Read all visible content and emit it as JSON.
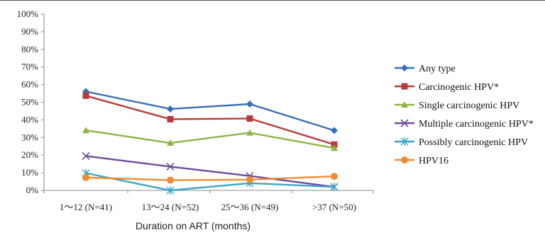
{
  "chart_data": {
    "type": "line",
    "title": "",
    "xlabel": "Duration on ART (months)",
    "ylabel": "",
    "ylim": [
      0,
      100
    ],
    "y_ticks": [
      "0%",
      "10%",
      "20%",
      "30%",
      "40%",
      "50%",
      "60%",
      "70%",
      "80%",
      "90%",
      "100%"
    ],
    "categories": [
      "1～12 (N=41)",
      "13～24 (N=52)",
      "25～36 (N=49)",
      ">37 (N=50)"
    ],
    "grid": false,
    "legend_position": "right",
    "series": [
      {
        "name": "Any type",
        "values": [
          56.1,
          46.2,
          49.0,
          34.0
        ],
        "color": "#3a6fb5",
        "marker": "diamond"
      },
      {
        "name": "Carcinogenic HPV*",
        "values": [
          53.7,
          40.4,
          40.8,
          26.0
        ],
        "color": "#b83a37",
        "marker": "square"
      },
      {
        "name": "Single carcinogenic HPV",
        "values": [
          34.1,
          26.9,
          32.7,
          24.0
        ],
        "color": "#8db544",
        "marker": "triangle"
      },
      {
        "name": "Multiple carcinogenic HPV*",
        "values": [
          19.5,
          13.5,
          8.2,
          2.0
        ],
        "color": "#6e4c9a",
        "marker": "x"
      },
      {
        "name": "Possibly carcinogenic HPV",
        "values": [
          9.8,
          0.0,
          4.1,
          2.0
        ],
        "color": "#3ba5c4",
        "marker": "asterisk"
      },
      {
        "name": "HPV16",
        "values": [
          7.3,
          5.8,
          6.1,
          8.0
        ],
        "color": "#ef8b33",
        "marker": "circle"
      }
    ]
  }
}
